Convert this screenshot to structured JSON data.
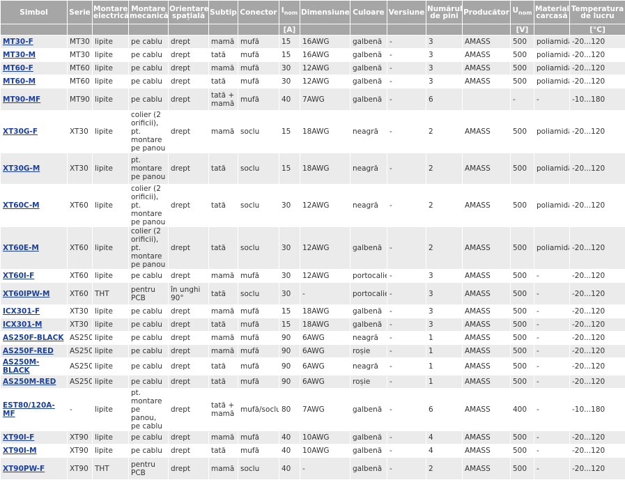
{
  "headers": {
    "simbol": "Simbol",
    "serie": "Serie",
    "montare_el": "Montare electrică",
    "montare_mec": "Montare mecanică",
    "orientare": "Orientare spațială",
    "subtip": "Subtip",
    "conector": "Conector",
    "inom": "I",
    "inom_sub": "nom",
    "dimensiune": "Dimensiune",
    "culoare": "Culoare",
    "versiune": "Versiune",
    "nr_pini": "Numărul de pini",
    "producator": "Producător",
    "unom": "U",
    "unom_sub": "nom",
    "material": "Material carcasă",
    "temperatura": "Temperatura de lucru"
  },
  "units": {
    "inom": "[A]",
    "unom": "[V]",
    "temperatura": "[°C]"
  },
  "rows": [
    {
      "simbol": "MT30-F",
      "serie": "MT30",
      "mel": "lipite",
      "mmec": "pe cablu",
      "or": "drept",
      "sub": "mamă",
      "con": "mufă",
      "i": "15",
      "dim": "16AWG",
      "cul": "galbenă",
      "ver": "-",
      "pini": "3",
      "prod": "AMASS",
      "u": "500",
      "mat": "poliamidă",
      "temp": "-20...120"
    },
    {
      "simbol": "MT30-M",
      "serie": "MT30",
      "mel": "lipite",
      "mmec": "pe cablu",
      "or": "drept",
      "sub": "tată",
      "con": "mufă",
      "i": "15",
      "dim": "16AWG",
      "cul": "galbenă",
      "ver": "-",
      "pini": "3",
      "prod": "AMASS",
      "u": "500",
      "mat": "poliamidă",
      "temp": "-20...120"
    },
    {
      "simbol": "MT60-F",
      "serie": "MT60",
      "mel": "lipite",
      "mmec": "pe cablu",
      "or": "drept",
      "sub": "mamă",
      "con": "mufă",
      "i": "30",
      "dim": "12AWG",
      "cul": "galbenă",
      "ver": "-",
      "pini": "3",
      "prod": "AMASS",
      "u": "500",
      "mat": "poliamidă",
      "temp": "-20...120"
    },
    {
      "simbol": "MT60-M",
      "serie": "MT60",
      "mel": "lipite",
      "mmec": "pe cablu",
      "or": "drept",
      "sub": "tată",
      "con": "mufă",
      "i": "30",
      "dim": "12AWG",
      "cul": "galbenă",
      "ver": "-",
      "pini": "3",
      "prod": "AMASS",
      "u": "500",
      "mat": "poliamidă",
      "temp": "-20...120"
    },
    {
      "simbol": "MT90-MF",
      "serie": "MT90",
      "mel": "lipite",
      "mmec": "pe cablu",
      "or": "drept",
      "sub": "tată + mamă",
      "con": "mufă",
      "i": "40",
      "dim": "7AWG",
      "cul": "galbenă",
      "ver": "-",
      "pini": "6",
      "prod": "",
      "u": "-",
      "mat": "-",
      "temp": "-10...180"
    },
    {
      "simbol": "XT30G-F",
      "serie": "XT30",
      "mel": "lipite",
      "mmec": "colier (2 orificii), pt. montare pe panou",
      "or": "drept",
      "sub": "mamă",
      "con": "soclu",
      "i": "15",
      "dim": "18AWG",
      "cul": "neagră",
      "ver": "-",
      "pini": "2",
      "prod": "AMASS",
      "u": "500",
      "mat": "poliamidă",
      "temp": "-20...120"
    },
    {
      "simbol": "XT30G-M",
      "serie": "XT30",
      "mel": "lipite",
      "mmec": "pt. montare pe panou",
      "or": "drept",
      "sub": "tată",
      "con": "soclu",
      "i": "15",
      "dim": "18AWG",
      "cul": "neagră",
      "ver": "-",
      "pini": "2",
      "prod": "AMASS",
      "u": "500",
      "mat": "poliamidă",
      "temp": "-20...120"
    },
    {
      "simbol": "XT60C-M",
      "serie": "XT60",
      "mel": "lipite",
      "mmec": "colier (2 orificii), pt. montare pe panou",
      "or": "drept",
      "sub": "tată",
      "con": "soclu",
      "i": "30",
      "dim": "12AWG",
      "cul": "neagră",
      "ver": "-",
      "pini": "2",
      "prod": "AMASS",
      "u": "500",
      "mat": "poliamidă",
      "temp": "-20...120"
    },
    {
      "simbol": "XT60E-M",
      "serie": "XT60",
      "mel": "lipite",
      "mmec": "colier (2 orificii), pt. montare pe panou",
      "or": "drept",
      "sub": "tată",
      "con": "soclu",
      "i": "30",
      "dim": "12AWG",
      "cul": "galbenă",
      "ver": "-",
      "pini": "2",
      "prod": "AMASS",
      "u": "500",
      "mat": "poliamidă",
      "temp": "-20...120"
    },
    {
      "simbol": "XT60I-F",
      "serie": "XT60",
      "mel": "lipite",
      "mmec": "pe cablu",
      "or": "drept",
      "sub": "mamă",
      "con": "mufă",
      "i": "30",
      "dim": "12AWG",
      "cul": "portocalie",
      "ver": "-",
      "pini": "3",
      "prod": "AMASS",
      "u": "500",
      "mat": "-",
      "temp": "-20...120"
    },
    {
      "simbol": "XT60IPW-M",
      "serie": "XT60",
      "mel": "THT",
      "mmec": "pentru PCB",
      "or": "în unghi 90°",
      "sub": "tată",
      "con": "soclu",
      "i": "30",
      "dim": "-",
      "cul": "portocalie",
      "ver": "-",
      "pini": "3",
      "prod": "AMASS",
      "u": "500",
      "mat": "-",
      "temp": "-20...120"
    },
    {
      "simbol": "ICX301-F",
      "serie": "XT30",
      "mel": "lipite",
      "mmec": "pe cablu",
      "or": "drept",
      "sub": "mamă",
      "con": "mufă",
      "i": "15",
      "dim": "18AWG",
      "cul": "galbenă",
      "ver": "-",
      "pini": "3",
      "prod": "AMASS",
      "u": "500",
      "mat": "-",
      "temp": "-20...120"
    },
    {
      "simbol": "ICX301-M",
      "serie": "XT30",
      "mel": "lipite",
      "mmec": "pe cablu",
      "or": "drept",
      "sub": "tată",
      "con": "mufă",
      "i": "15",
      "dim": "18AWG",
      "cul": "galbenă",
      "ver": "-",
      "pini": "3",
      "prod": "AMASS",
      "u": "500",
      "mat": "-",
      "temp": "-20...120"
    },
    {
      "simbol": "AS250F-BLACK",
      "serie": "AS250",
      "mel": "lipite",
      "mmec": "pe cablu",
      "or": "drept",
      "sub": "mamă",
      "con": "mufă",
      "i": "90",
      "dim": "6AWG",
      "cul": "neagră",
      "ver": "-",
      "pini": "1",
      "prod": "AMASS",
      "u": "500",
      "mat": "-",
      "temp": "-20...120"
    },
    {
      "simbol": "AS250F-RED",
      "serie": "AS250",
      "mel": "lipite",
      "mmec": "pe cablu",
      "or": "drept",
      "sub": "mamă",
      "con": "mufă",
      "i": "90",
      "dim": "6AWG",
      "cul": "roșie",
      "ver": "-",
      "pini": "1",
      "prod": "AMASS",
      "u": "500",
      "mat": "-",
      "temp": "-20...120"
    },
    {
      "simbol": "AS250M-BLACK",
      "serie": "AS250",
      "mel": "lipite",
      "mmec": "pe cablu",
      "or": "drept",
      "sub": "tată",
      "con": "mufă",
      "i": "90",
      "dim": "6AWG",
      "cul": "neagră",
      "ver": "-",
      "pini": "1",
      "prod": "AMASS",
      "u": "500",
      "mat": "-",
      "temp": "-20...120"
    },
    {
      "simbol": "AS250M-RED",
      "serie": "AS250",
      "mel": "lipite",
      "mmec": "pe cablu",
      "or": "drept",
      "sub": "tată",
      "con": "mufă",
      "i": "90",
      "dim": "6AWG",
      "cul": "roșie",
      "ver": "-",
      "pini": "1",
      "prod": "AMASS",
      "u": "500",
      "mat": "-",
      "temp": "-20...120"
    },
    {
      "simbol": "EST80/120A-MF",
      "serie": "-",
      "mel": "lipite",
      "mmec": "pt. montare pe panou, pe cablu",
      "or": "drept",
      "sub": "tată + mamă",
      "con": "mufă/soclu",
      "i": "80",
      "dim": "7AWG",
      "cul": "galbenă",
      "ver": "-",
      "pini": "6",
      "prod": "AMASS",
      "u": "400",
      "mat": "-",
      "temp": "-10...180"
    },
    {
      "simbol": "XT90I-F",
      "serie": "XT90",
      "mel": "lipite",
      "mmec": "pe cablu",
      "or": "drept",
      "sub": "mamă",
      "con": "mufă",
      "i": "40",
      "dim": "10AWG",
      "cul": "galbenă",
      "ver": "-",
      "pini": "4",
      "prod": "AMASS",
      "u": "500",
      "mat": "-",
      "temp": "-20...120"
    },
    {
      "simbol": "XT90I-M",
      "serie": "XT90",
      "mel": "lipite",
      "mmec": "pe cablu",
      "or": "drept",
      "sub": "tată",
      "con": "mufă",
      "i": "40",
      "dim": "10AWG",
      "cul": "galbenă",
      "ver": "-",
      "pini": "4",
      "prod": "AMASS",
      "u": "500",
      "mat": "-",
      "temp": "-20...120"
    },
    {
      "simbol": "XT90PW-F",
      "serie": "XT90",
      "mel": "THT",
      "mmec": "pentru PCB",
      "or": "drept",
      "sub": "mamă",
      "con": "soclu",
      "i": "40",
      "dim": "-",
      "cul": "galbenă",
      "ver": "-",
      "pini": "2",
      "prod": "AMASS",
      "u": "500",
      "mat": "-",
      "temp": "-20...120"
    }
  ]
}
